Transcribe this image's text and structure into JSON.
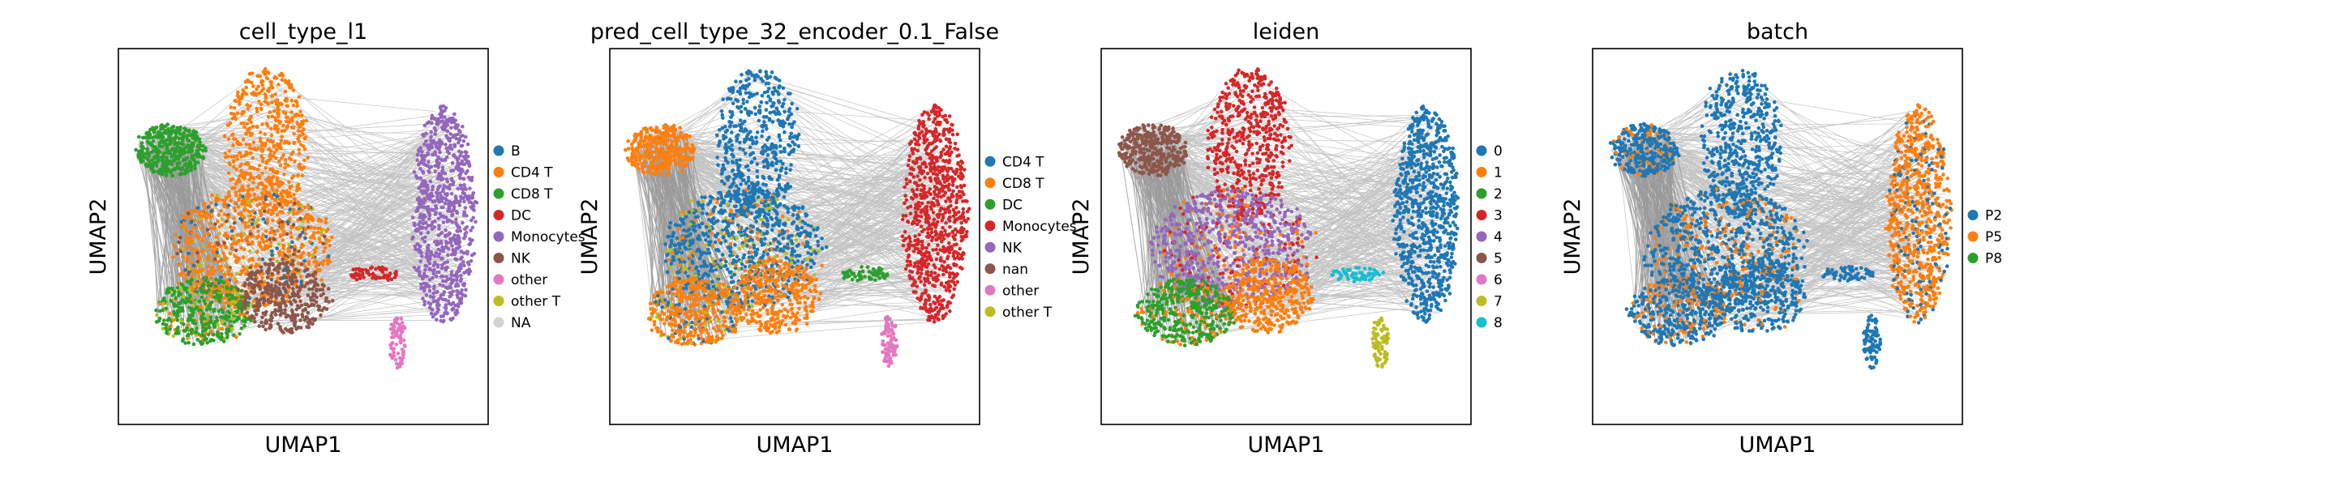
{
  "figure": {
    "background": "#ffffff",
    "edge_color": "#888888"
  },
  "chart_data": [
    {
      "type": "scatter",
      "title": "cell_type_l1",
      "xlabel": "UMAP1",
      "ylabel": "UMAP2",
      "grid": false,
      "legend_placement": "right",
      "legend": [
        {
          "label": "B",
          "color": "#1f77b4"
        },
        {
          "label": "CD4 T",
          "color": "#ff7f0e"
        },
        {
          "label": "CD8 T",
          "color": "#2ca02c"
        },
        {
          "label": "DC",
          "color": "#d62728"
        },
        {
          "label": "Monocytes",
          "color": "#9467bd"
        },
        {
          "label": "NK",
          "color": "#8c564b"
        },
        {
          "label": "other",
          "color": "#e377c2"
        },
        {
          "label": "other T",
          "color": "#bcbd22"
        },
        {
          "label": "NA",
          "color": "#d3d3d3"
        }
      ]
    },
    {
      "type": "scatter",
      "title": "pred_cell_type_32_encoder_0.1_False",
      "xlabel": "UMAP1",
      "ylabel": "UMAP2",
      "grid": false,
      "legend_placement": "right",
      "legend": [
        {
          "label": "CD4 T",
          "color": "#1f77b4"
        },
        {
          "label": "CD8 T",
          "color": "#ff7f0e"
        },
        {
          "label": "DC",
          "color": "#2ca02c"
        },
        {
          "label": "Monocytes",
          "color": "#d62728"
        },
        {
          "label": "NK",
          "color": "#9467bd"
        },
        {
          "label": "nan",
          "color": "#8c564b"
        },
        {
          "label": "other",
          "color": "#e377c2"
        },
        {
          "label": "other T",
          "color": "#bcbd22"
        }
      ]
    },
    {
      "type": "scatter",
      "title": "leiden",
      "xlabel": "UMAP1",
      "ylabel": "UMAP2",
      "grid": false,
      "legend_placement": "right",
      "legend": [
        {
          "label": "0",
          "color": "#1f77b4"
        },
        {
          "label": "1",
          "color": "#ff7f0e"
        },
        {
          "label": "2",
          "color": "#2ca02c"
        },
        {
          "label": "3",
          "color": "#d62728"
        },
        {
          "label": "4",
          "color": "#9467bd"
        },
        {
          "label": "5",
          "color": "#8c564b"
        },
        {
          "label": "6",
          "color": "#e377c2"
        },
        {
          "label": "7",
          "color": "#bcbd22"
        },
        {
          "label": "8",
          "color": "#17becf"
        }
      ]
    },
    {
      "type": "scatter",
      "title": "batch",
      "xlabel": "UMAP1",
      "ylabel": "UMAP2",
      "grid": false,
      "legend_placement": "right",
      "legend": [
        {
          "label": "P2",
          "color": "#1f77b4"
        },
        {
          "label": "P5",
          "color": "#ff7f0e"
        },
        {
          "label": "P8",
          "color": "#2ca02c"
        }
      ]
    }
  ]
}
